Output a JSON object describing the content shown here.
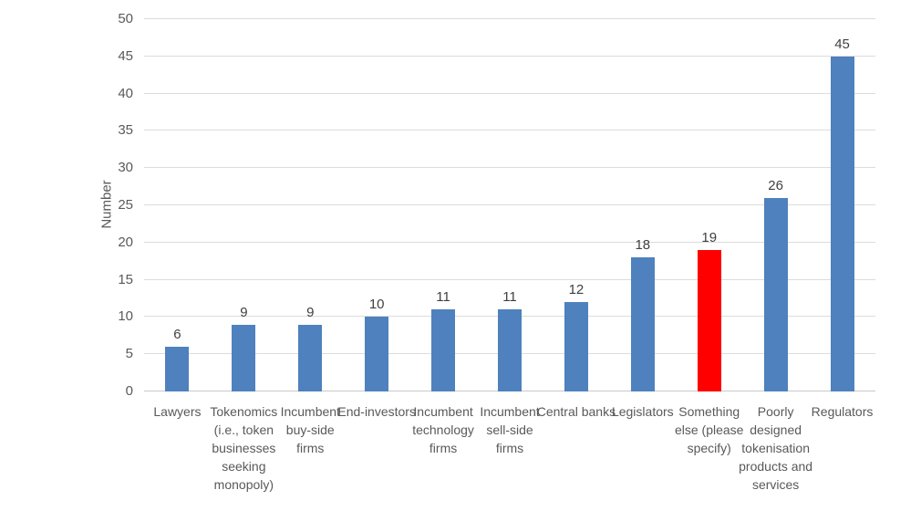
{
  "chart_data": {
    "type": "bar",
    "title": "",
    "xlabel": "",
    "ylabel": "Number",
    "ylim": [
      0,
      50
    ],
    "y_ticks": [
      0,
      5,
      10,
      15,
      20,
      25,
      30,
      35,
      40,
      45,
      50
    ],
    "grid": "horizontal",
    "legend": "none",
    "categories": [
      "Lawyers",
      "Tokenomics\n(i.e., token\nbusinesses\nseeking\nmonopoly)",
      "Incumbent\nbuy-side\nfirms",
      "End-investors",
      "Incumbent\ntechnology\nfirms",
      "Incumbent\nsell-side\nfirms",
      "Central banks",
      "Legislators",
      "Something\nelse (please\nspecify)",
      "Poorly\ndesigned\ntokenisation\nproducts and\nservices",
      "Regulators"
    ],
    "values": [
      6,
      9,
      9,
      10,
      11,
      11,
      12,
      18,
      19,
      26,
      45
    ],
    "default_bar_color": "#4e81bd",
    "highlight_color": "#ff0000",
    "highlight_index": 8,
    "bar_colors": [
      "#4e81bd",
      "#4e81bd",
      "#4e81bd",
      "#4e81bd",
      "#4e81bd",
      "#4e81bd",
      "#4e81bd",
      "#4e81bd",
      "#ff0000",
      "#4e81bd",
      "#4e81bd"
    ],
    "gridline_color": "#dcdcdc",
    "axis_text_color": "#595959",
    "value_label_color": "#404040"
  }
}
